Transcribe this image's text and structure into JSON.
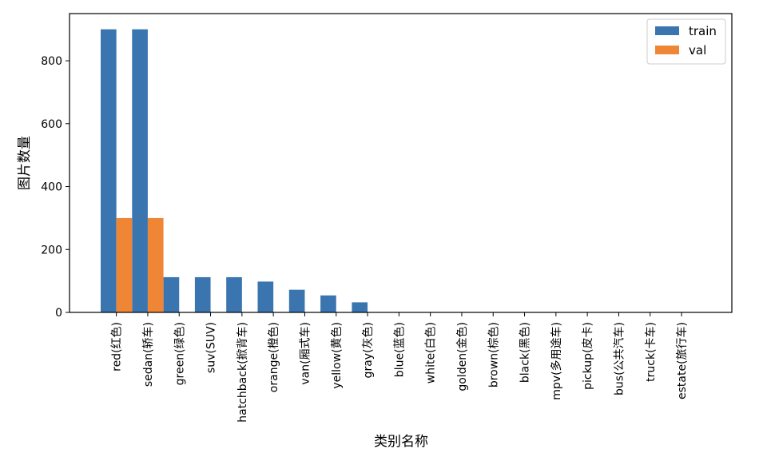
{
  "chart_data": {
    "type": "bar",
    "title": "",
    "xlabel": "类别名称",
    "ylabel": "图片数量",
    "ylim": [
      0,
      950
    ],
    "yticks": [
      0,
      200,
      400,
      600,
      800
    ],
    "grid": false,
    "legend_position": "top-right",
    "categories": [
      "red(红色)",
      "sedan(轿车)",
      "green(绿色)",
      "suv(SUV)",
      "hatchback(掀背车)",
      "orange(橙色)",
      "van(厢式车)",
      "yellow(黄色)",
      "gray(灰色)",
      "blue(蓝色)",
      "white(白色)",
      "golden(金色)",
      "brown(棕色)",
      "black(黑色)",
      "mpv(多用途车)",
      "pickup(皮卡)",
      "bus(公共汽车)",
      "truck(卡车)",
      "estate(旅行车)"
    ],
    "series": [
      {
        "name": "train",
        "color": "#3a75b0",
        "values": [
          900,
          900,
          112,
          112,
          112,
          98,
          72,
          54,
          32,
          0,
          0,
          0,
          0,
          0,
          0,
          0,
          0,
          0,
          0
        ]
      },
      {
        "name": "val",
        "color": "#ef8636",
        "values": [
          300,
          300,
          0,
          0,
          0,
          0,
          0,
          0,
          0,
          0,
          0,
          0,
          0,
          0,
          0,
          0,
          0,
          0,
          0
        ]
      }
    ]
  }
}
